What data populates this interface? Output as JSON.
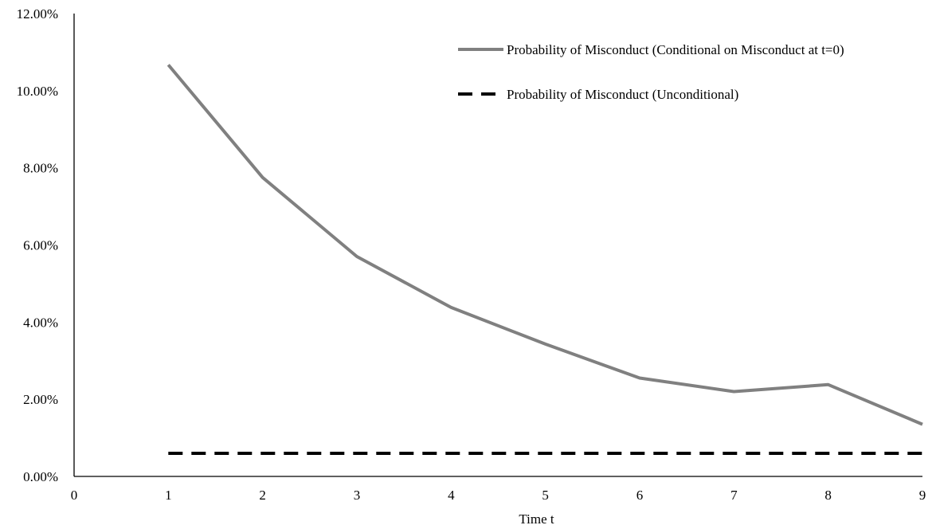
{
  "chart_data": {
    "type": "line",
    "title": "",
    "xlabel": "Time t",
    "ylabel": "",
    "x_ticks": [
      "0",
      "1",
      "2",
      "3",
      "4",
      "5",
      "6",
      "7",
      "8",
      "9"
    ],
    "y_ticks": [
      "0.00%",
      "2.00%",
      "4.00%",
      "6.00%",
      "8.00%",
      "10.00%",
      "12.00%"
    ],
    "xlim": [
      0,
      9
    ],
    "ylim": [
      0,
      12
    ],
    "y_unit": "%",
    "grid": false,
    "legend_position": "top-right",
    "series": [
      {
        "name": "Probability of Misconduct (Conditional on Misconduct at t=0)",
        "style": "solid",
        "color": "#808080",
        "x": [
          1,
          2,
          3,
          4,
          5,
          6,
          7,
          8,
          9
        ],
        "y": [
          10.67,
          7.75,
          5.7,
          4.38,
          3.43,
          2.55,
          2.2,
          2.38,
          1.35
        ]
      },
      {
        "name": "Probability of Misconduct (Unconditional)",
        "style": "dashed",
        "color": "#000000",
        "x": [
          1,
          9
        ],
        "y": [
          0.6,
          0.6
        ]
      }
    ]
  }
}
